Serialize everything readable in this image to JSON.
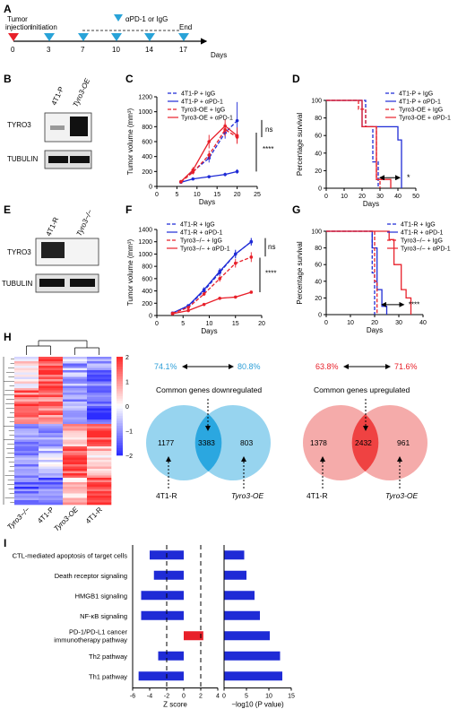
{
  "panels": {
    "A": "A",
    "B": "B",
    "C": "C",
    "D": "D",
    "E": "E",
    "F": "F",
    "G": "G",
    "H": "H",
    "I": "I"
  },
  "timeline": {
    "tumor_injection": [
      "Tumor",
      "injection"
    ],
    "initiation": "Initiation",
    "treatment_legend": "αPD-1 or IgG",
    "end": "End",
    "ticks": [
      "0",
      "3",
      "7",
      "10",
      "14",
      "17"
    ],
    "unit": "Days",
    "colors": {
      "injection": "#e8202a",
      "treatment": "#29a3d8"
    }
  },
  "western_B": {
    "lanes": [
      "4T1-P",
      "Tyro3-OE"
    ],
    "rows": [
      "TYRO3",
      "TUBULIN"
    ]
  },
  "western_E": {
    "lanes": [
      "4T1-R",
      "Tyro3−/−"
    ],
    "rows": [
      "TYRO3",
      "TUBULIN"
    ]
  },
  "legend_text": {
    "C": [
      "4T1-P + IgG",
      "4T1-P + αPD-1",
      "Tyro3-OE + IgG",
      "Tyro3-OE + αPD-1"
    ],
    "D": [
      "4T1-P + IgG",
      "4T1-P + αPD-1",
      "Tyro3-OE + IgG",
      "Tyro3-OE + αPD-1"
    ],
    "F": [
      "4T1-R + IgG",
      "4T1-R + αPD-1",
      "Tyro3−/− + IgG",
      "Tyro3−/− + αPD-1"
    ],
    "G": [
      "4T1-R + IgG",
      "4T1-R + αPD-1",
      "Tyro3−/− + IgG",
      "Tyro3−/− + αPD-1"
    ]
  },
  "series_colors": {
    "blue": "#1f2bd6",
    "red": "#e8202a"
  },
  "chart_data": [
    {
      "panel": "C",
      "type": "line",
      "xlabel": "Days",
      "ylabel": "Tumor volume (mm³)",
      "xlim": [
        0,
        25
      ],
      "ylim": [
        0,
        1200
      ],
      "xticks": [
        0,
        5,
        10,
        15,
        20,
        25
      ],
      "yticks": [
        0,
        200,
        400,
        600,
        800,
        1000,
        1200
      ],
      "x": [
        6,
        9,
        13,
        17,
        20
      ],
      "series": [
        {
          "name": "4T1-P + IgG",
          "values": [
            60,
            200,
            380,
            720,
            880
          ],
          "err": [
            10,
            30,
            60,
            80,
            250
          ]
        },
        {
          "name": "4T1-P + αPD-1",
          "values": [
            55,
            100,
            130,
            160,
            200
          ],
          "err": [
            8,
            15,
            20,
            25,
            30
          ]
        },
        {
          "name": "Tyro3-OE + IgG",
          "values": [
            60,
            190,
            420,
            760,
            660
          ],
          "err": [
            10,
            30,
            60,
            90,
            80
          ]
        },
        {
          "name": "Tyro3-OE + αPD-1",
          "values": [
            65,
            220,
            600,
            810,
            680
          ],
          "err": [
            10,
            40,
            90,
            90,
            110
          ]
        }
      ],
      "annotations": [
        "ns",
        "****"
      ]
    },
    {
      "panel": "D",
      "type": "line",
      "xlabel": "Days",
      "ylabel": "Percentage survival",
      "xlim": [
        0,
        50
      ],
      "ylim": [
        0,
        100
      ],
      "xticks": [
        0,
        10,
        20,
        30,
        40,
        50
      ],
      "yticks": [
        0,
        20,
        40,
        60,
        80,
        100
      ],
      "series": [
        {
          "name": "4T1-P + IgG",
          "steps": [
            [
              0,
              100
            ],
            [
              22,
              100
            ],
            [
              22,
              70
            ],
            [
              26,
              70
            ],
            [
              26,
              30
            ],
            [
              29,
              30
            ],
            [
              29,
              0
            ]
          ]
        },
        {
          "name": "4T1-P + αPD-1",
          "steps": [
            [
              0,
              100
            ],
            [
              20,
              100
            ],
            [
              20,
              70
            ],
            [
              40,
              70
            ],
            [
              40,
              55
            ],
            [
              42,
              55
            ],
            [
              42,
              0
            ]
          ]
        },
        {
          "name": "Tyro3-OE + IgG",
          "steps": [
            [
              0,
              100
            ],
            [
              18,
              100
            ],
            [
              18,
              90
            ],
            [
              22,
              90
            ],
            [
              22,
              70
            ],
            [
              28,
              70
            ],
            [
              28,
              10
            ],
            [
              30,
              10
            ],
            [
              30,
              0
            ]
          ]
        },
        {
          "name": "Tyro3-OE + αPD-1",
          "steps": [
            [
              0,
              100
            ],
            [
              20,
              100
            ],
            [
              20,
              70
            ],
            [
              28,
              70
            ],
            [
              28,
              10
            ],
            [
              36,
              10
            ],
            [
              36,
              0
            ]
          ]
        }
      ],
      "annotations": [
        "*"
      ]
    },
    {
      "panel": "F",
      "type": "line",
      "xlabel": "Days",
      "ylabel": "Tumor volume (mm³)",
      "xlim": [
        0,
        20
      ],
      "ylim": [
        0,
        1400
      ],
      "xticks": [
        0,
        5,
        10,
        15,
        20
      ],
      "yticks": [
        0,
        200,
        400,
        600,
        800,
        1000,
        1200,
        1400
      ],
      "x": [
        3,
        6,
        9,
        12,
        15,
        18
      ],
      "series": [
        {
          "name": "4T1-R + IgG",
          "values": [
            40,
            150,
            400,
            700,
            1000,
            1200
          ],
          "err": [
            10,
            20,
            40,
            60,
            70,
            60
          ]
        },
        {
          "name": "4T1-R + αPD-1",
          "values": [
            40,
            160,
            420,
            720,
            1000,
            1200
          ],
          "err": [
            10,
            20,
            40,
            50,
            60,
            60
          ]
        },
        {
          "name": "Tyro3−/− + IgG",
          "values": [
            35,
            130,
            350,
            600,
            850,
            950
          ],
          "err": [
            10,
            20,
            30,
            50,
            70,
            80
          ]
        },
        {
          "name": "Tyro3−/− + αPD-1",
          "values": [
            30,
            80,
            180,
            280,
            300,
            380
          ],
          "err": [
            5,
            10,
            15,
            20,
            20,
            20
          ]
        }
      ],
      "annotations": [
        "ns",
        "****"
      ]
    },
    {
      "panel": "G",
      "type": "line",
      "xlabel": "Days",
      "ylabel": "Percentage survival",
      "xlim": [
        0,
        40
      ],
      "ylim": [
        0,
        100
      ],
      "xticks": [
        0,
        10,
        20,
        30,
        40
      ],
      "yticks": [
        0,
        20,
        40,
        60,
        80,
        100
      ],
      "series": [
        {
          "name": "4T1-R + IgG",
          "steps": [
            [
              0,
              100
            ],
            [
              19,
              100
            ],
            [
              19,
              50
            ],
            [
              20,
              50
            ],
            [
              20,
              0
            ]
          ]
        },
        {
          "name": "4T1-R + αPD-1",
          "steps": [
            [
              0,
              100
            ],
            [
              19,
              100
            ],
            [
              19,
              80
            ],
            [
              21,
              80
            ],
            [
              21,
              30
            ],
            [
              23,
              30
            ],
            [
              23,
              10
            ],
            [
              25,
              10
            ],
            [
              25,
              0
            ]
          ]
        },
        {
          "name": "Tyro3−/− + IgG",
          "steps": [
            [
              0,
              100
            ],
            [
              20,
              100
            ],
            [
              20,
              40
            ],
            [
              21,
              40
            ],
            [
              21,
              0
            ]
          ]
        },
        {
          "name": "Tyro3−/− + αPD-1",
          "steps": [
            [
              0,
              100
            ],
            [
              26,
              100
            ],
            [
              26,
              90
            ],
            [
              28,
              90
            ],
            [
              28,
              60
            ],
            [
              31,
              60
            ],
            [
              31,
              30
            ],
            [
              33,
              30
            ],
            [
              33,
              20
            ],
            [
              35,
              20
            ],
            [
              35,
              0
            ]
          ]
        }
      ],
      "annotations": [
        "****"
      ]
    },
    {
      "panel": "I-left",
      "type": "bar",
      "categories": [
        "CTL-mediated apoptosis of target cells",
        "Death receptor signaling",
        "HMGB1 signaling",
        "NF-κB signaling",
        "PD-1/PD-L1 cancer immunotherapy pathway",
        "Th2 pathway",
        "Th1 pathway"
      ],
      "values": [
        -4,
        -3.5,
        -5,
        -5,
        2.3,
        -3,
        -5.3
      ],
      "xlabel": "Z score",
      "xlim": [
        -6,
        4
      ],
      "xticks": [
        -6,
        -4,
        -2,
        0,
        2,
        4
      ],
      "reference_lines": [
        -2,
        2
      ]
    },
    {
      "panel": "I-right",
      "type": "bar",
      "categories": [
        "CTL-mediated apoptosis of target cells",
        "Death receptor signaling",
        "HMGB1 signaling",
        "NF-κB signaling",
        "PD-1/PD-L1 cancer immunotherapy pathway",
        "Th2 pathway",
        "Th1 pathway"
      ],
      "values": [
        4.5,
        5,
        6.8,
        8,
        10.2,
        12.5,
        13
      ],
      "xlabel": "−log10 (P value)",
      "xlim": [
        0,
        15
      ],
      "xticks": [
        0,
        5,
        10,
        15
      ]
    }
  ],
  "heatmap": {
    "columns": [
      "Tyro3−/−",
      "4T1-P",
      "Tyro3-OE",
      "4T1-R"
    ],
    "scale_ticks": [
      "2",
      "1",
      "0",
      "−1",
      "−2"
    ]
  },
  "venn": {
    "down_pct_left": "74.1%",
    "down_pct_right": "80.8%",
    "up_pct_left": "63.8%",
    "up_pct_right": "71.6%",
    "down_title": "Common genes downregulated",
    "up_title": "Common genes upregulated",
    "down_counts": [
      "1177",
      "3383",
      "803"
    ],
    "up_counts": [
      "1378",
      "2432",
      "961"
    ],
    "labels": [
      "4T1-R",
      "Tyro3-OE",
      "4T1-R",
      "Tyro3-OE"
    ]
  }
}
